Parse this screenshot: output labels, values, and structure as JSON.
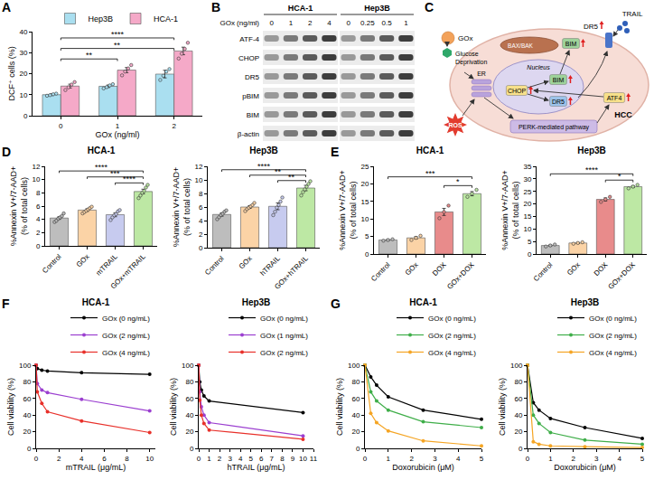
{
  "chart_data": [
    {
      "panel": "A",
      "type": "bar",
      "x_label": "GOx (ng/ml)",
      "y_label": "DCF⁺ cells (%)",
      "categories": [
        "0",
        "1",
        "2"
      ],
      "series": [
        {
          "name": "Hep3B",
          "color": "#aadff0",
          "values": [
            10.0,
            14.0,
            19.8
          ],
          "errors": [
            0.4,
            0.6,
            1.8
          ],
          "points": [
            [
              9.5,
              9.8,
              10.2,
              10.5
            ],
            [
              13.0,
              13.6,
              14.4,
              15.0
            ],
            [
              17.0,
              19.0,
              21.0,
              22.2
            ]
          ]
        },
        {
          "name": "HCA-1",
          "color": "#f5a9c8",
          "values": [
            14.1,
            21.7,
            30.8
          ],
          "errors": [
            0.9,
            1.2,
            1.8
          ],
          "points": [
            [
              12.2,
              13.5,
              14.8,
              16.0
            ],
            [
              19.2,
              21.0,
              22.5,
              24.1
            ],
            [
              27.2,
              29.5,
              31.8,
              34.7
            ]
          ]
        }
      ],
      "ylim": [
        0,
        40
      ],
      "yticks": [
        0,
        10,
        20,
        30,
        40
      ],
      "grid": false,
      "legend": "top",
      "annotations": [
        {
          "text": "**",
          "from": "0",
          "to": "1",
          "y": 27
        },
        {
          "text": "**",
          "from": "0",
          "to": "2",
          "y": 32
        },
        {
          "text": "****",
          "from": "0",
          "to": "2",
          "y": 37
        }
      ]
    },
    {
      "panel": "D",
      "type": "bar",
      "title": "HCA-1",
      "y_label": "%Annexin V+/7-AAD+ (% of total cells)",
      "categories": [
        "Control",
        "GOx",
        "mTRAIL",
        "GOx+mTRAIL"
      ],
      "colors": [
        "#bdbdbd",
        "#fbd3a6",
        "#c7cbef",
        "#bde8a4"
      ],
      "values": [
        4.2,
        5.4,
        4.7,
        8.2
      ],
      "errors": [
        0.2,
        0.2,
        0.3,
        0.35
      ],
      "points": [
        [
          3.6,
          3.8,
          4.1,
          4.3,
          4.5,
          4.9
        ],
        [
          4.9,
          5.1,
          5.3,
          5.5,
          5.7,
          5.9
        ],
        [
          3.9,
          4.3,
          4.6,
          4.8,
          5.2,
          5.4
        ],
        [
          7.2,
          7.6,
          8.0,
          8.3,
          8.8,
          9.2
        ]
      ],
      "ylim": [
        0,
        12
      ],
      "yticks": [
        0,
        2,
        4,
        6,
        8,
        10,
        12
      ],
      "grid": false,
      "annotations": [
        {
          "text": "****",
          "from": "Control",
          "to": "GOx+mTRAIL",
          "y": 11.3
        },
        {
          "text": "***",
          "from": "GOx",
          "to": "GOx+mTRAIL",
          "y": 10.4
        },
        {
          "text": "****",
          "from": "mTRAIL",
          "to": "GOx+mTRAIL",
          "y": 9.5
        }
      ]
    },
    {
      "type": "bar",
      "title": "Hep3B",
      "y_label": "%Annexin V+/7-AAD+ (% of total cells)",
      "categories": [
        "Control",
        "GOx",
        "hTRAIL",
        "GOx+hTRAIL"
      ],
      "colors": [
        "#bdbdbd",
        "#fbd3a6",
        "#c7cbef",
        "#bde8a4"
      ],
      "values": [
        4.9,
        6.0,
        6.1,
        8.8
      ],
      "errors": [
        0.25,
        0.2,
        0.5,
        0.4
      ],
      "points": [
        [
          4.2,
          4.5,
          4.8,
          5.0,
          5.3,
          5.5
        ],
        [
          5.4,
          5.7,
          5.9,
          6.1,
          6.3,
          6.6
        ],
        [
          4.8,
          5.3,
          5.9,
          6.3,
          6.8,
          7.4
        ],
        [
          7.7,
          8.2,
          8.6,
          9.0,
          9.4,
          9.8
        ]
      ],
      "ylim": [
        0,
        12
      ],
      "yticks": [
        0,
        2,
        4,
        6,
        8,
        10,
        12
      ],
      "grid": false,
      "annotations": [
        {
          "text": "****",
          "from": "Control",
          "to": "GOx+hTRAIL",
          "y": 11.5
        },
        {
          "text": "**",
          "from": "GOx",
          "to": "GOx+hTRAIL",
          "y": 10.7
        },
        {
          "text": "**",
          "from": "hTRAIL",
          "to": "GOx+hTRAIL",
          "y": 9.9
        }
      ]
    },
    {
      "panel": "E",
      "type": "bar",
      "title": "HCA-1",
      "y_label": "%Annexin V+/7-AAD+ (% of total cells)",
      "categories": [
        "Control",
        "GOx",
        "DOX",
        "GOx+DOX"
      ],
      "colors": [
        "#bdbdbd",
        "#fbd3a6",
        "#e88b8b",
        "#bde8a4"
      ],
      "values": [
        4.0,
        4.6,
        12.0,
        17.2
      ],
      "errors": [
        0.15,
        0.35,
        1.0,
        0.6
      ],
      "points": [
        [
          3.8,
          4.0,
          4.2
        ],
        [
          4.0,
          4.6,
          5.2
        ],
        [
          10.2,
          12.0,
          13.8
        ],
        [
          16.3,
          17.2,
          18.3
        ]
      ],
      "ylim": [
        0,
        25
      ],
      "yticks": [
        0,
        5,
        10,
        15,
        20,
        25
      ],
      "grid": false,
      "annotations": [
        {
          "text": "***",
          "from": "Control",
          "to": "GOx+DOX",
          "y": 22
        },
        {
          "text": "*",
          "from": "DOX",
          "to": "GOx+DOX",
          "y": 19.5
        }
      ]
    },
    {
      "type": "bar",
      "title": "Hep3B",
      "y_label": "%Annexin V+/7-AAD+ (% of total cells)",
      "categories": [
        "Control",
        "GOx",
        "DOX",
        "GOx+DOX"
      ],
      "colors": [
        "#bdbdbd",
        "#fbd3a6",
        "#e88b8b",
        "#bde8a4"
      ],
      "values": [
        3.4,
        4.4,
        21.8,
        26.9
      ],
      "errors": [
        0.2,
        0.2,
        0.6,
        0.4
      ],
      "points": [
        [
          3.0,
          3.4,
          3.8
        ],
        [
          4.1,
          4.4,
          4.7
        ],
        [
          20.8,
          21.8,
          22.8
        ],
        [
          26.2,
          26.9,
          27.6
        ]
      ],
      "ylim": [
        0,
        35
      ],
      "yticks": [
        0,
        5,
        10,
        15,
        20,
        25,
        30,
        35
      ],
      "grid": false,
      "annotations": [
        {
          "text": "****",
          "from": "Control",
          "to": "GOx+DOX",
          "y": 32
        },
        {
          "text": "*",
          "from": "DOX",
          "to": "GOx+DOX",
          "y": 29.5
        }
      ]
    },
    {
      "panel": "F",
      "type": "line",
      "title": "HCA-1",
      "x_label": "mTRAIL (μg/mL)",
      "y_label": "Cell viability (%)",
      "x": [
        0,
        0.1,
        0.5,
        1,
        4,
        10
      ],
      "series": [
        {
          "name": "GOx (0 ng/mL)",
          "color": "#000000",
          "values": [
            100,
            96,
            94,
            93,
            91,
            89
          ]
        },
        {
          "name": "GOx (2 ng/mL)",
          "color": "#9b3fd0",
          "values": [
            100,
            78,
            70,
            67,
            59,
            45
          ]
        },
        {
          "name": "GOx (4 ng/mL)",
          "color": "#e8302a",
          "values": [
            100,
            68,
            54,
            44,
            33,
            19
          ]
        }
      ],
      "xlim": [
        0,
        10.5
      ],
      "xticks": [
        0,
        2,
        4,
        6,
        8,
        10
      ],
      "ylim": [
        0,
        100
      ],
      "yticks": [
        0,
        20,
        40,
        60,
        80,
        100
      ],
      "marker": "circle",
      "grid": false,
      "legend": "top"
    },
    {
      "type": "line",
      "title": "Hep3B",
      "x_label": "hTRAIL (μg/mL)",
      "y_label": "Cell viability (%)",
      "x": [
        0,
        0.1,
        0.25,
        0.5,
        1,
        10
      ],
      "series": [
        {
          "name": "GOx (0 ng/mL)",
          "color": "#000000",
          "values": [
            100,
            80,
            70,
            63,
            57,
            43
          ]
        },
        {
          "name": "GOx (1 ng/mL)",
          "color": "#9b3fd0",
          "values": [
            100,
            68,
            50,
            40,
            31,
            15
          ]
        },
        {
          "name": "GOx (2 ng/mL)",
          "color": "#e8302a",
          "values": [
            100,
            58,
            40,
            30,
            22,
            11
          ]
        }
      ],
      "xlim": [
        0,
        11
      ],
      "xticks": [
        0,
        1,
        2,
        3,
        4,
        5,
        6,
        7,
        8,
        9,
        10,
        11
      ],
      "ylim": [
        0,
        100
      ],
      "yticks": [
        0,
        20,
        40,
        60,
        80,
        100
      ],
      "marker": "circle",
      "grid": false,
      "legend": "top"
    },
    {
      "panel": "G",
      "type": "line",
      "title": "HCA-1",
      "x_label": "Doxorubicin (μM)",
      "y_label": "Cell viability (%)",
      "x": [
        0,
        0.25,
        0.5,
        1,
        2.5,
        5
      ],
      "series": [
        {
          "name": "GOx (0 ng/mL)",
          "color": "#000000",
          "values": [
            100,
            86,
            76,
            62,
            46,
            35
          ]
        },
        {
          "name": "GOx (2 ng/mL)",
          "color": "#3fae49",
          "values": [
            100,
            68,
            57,
            46,
            32,
            25
          ]
        },
        {
          "name": "GOx (4 ng/mL)",
          "color": "#f5a524",
          "values": [
            100,
            42,
            31,
            21,
            9,
            3
          ]
        }
      ],
      "xlim": [
        0,
        5
      ],
      "xticks": [
        0,
        1,
        2,
        3,
        4,
        5
      ],
      "ylim": [
        0,
        100
      ],
      "yticks": [
        0,
        20,
        40,
        60,
        80,
        100
      ],
      "marker": "circle",
      "grid": false,
      "legend": "top"
    },
    {
      "type": "line",
      "title": "Hep3B",
      "x_label": "Doxorubicin (μM)",
      "y_label": "Cell viability (%)",
      "x": [
        0,
        0.25,
        0.5,
        1,
        2.5,
        5
      ],
      "series": [
        {
          "name": "GOx (0 ng/mL)",
          "color": "#000000",
          "values": [
            100,
            55,
            46,
            36,
            25,
            12
          ]
        },
        {
          "name": "GOx (2 ng/mL)",
          "color": "#3fae49",
          "values": [
            100,
            40,
            30,
            19,
            10,
            5
          ]
        },
        {
          "name": "GOx (4 ng/mL)",
          "color": "#f5a524",
          "values": [
            100,
            8,
            5,
            3,
            2,
            1
          ]
        }
      ],
      "xlim": [
        0,
        5
      ],
      "xticks": [
        0,
        1,
        2,
        3,
        4,
        5
      ],
      "ylim": [
        0,
        100
      ],
      "yticks": [
        0,
        20,
        40,
        60,
        80,
        100
      ],
      "marker": "circle",
      "grid": false,
      "legend": "top"
    }
  ],
  "blot": {
    "panel": "B",
    "dose_label": "GOx (ng/ml)",
    "groups": [
      {
        "name": "HCA-1",
        "doses": [
          "0",
          "1",
          "2",
          "4"
        ]
      },
      {
        "name": "Hep3B",
        "doses": [
          "0",
          "0.25",
          "0.5",
          "1"
        ]
      }
    ],
    "rows": [
      "ATF-4",
      "CHOP",
      "DR5",
      "pBIM",
      "BIM",
      "β-actin"
    ]
  },
  "diagram": {
    "panel": "C",
    "labels": {
      "receptor": "DR5",
      "ligand": "TRAIL",
      "mito": "BAX/BAK",
      "mito_bim": "BIM",
      "nucleus": "Nucleus",
      "chop": "CHOP",
      "nuc_bim": "BIM",
      "nuc_dr5": "DR5",
      "atf4": "ATF4",
      "er": "ER",
      "gox": "GOx",
      "glucose": "Glucose Deprivation",
      "ros": "ROS",
      "perk": "PERK-mediated pathway",
      "cell": "HCC"
    }
  }
}
